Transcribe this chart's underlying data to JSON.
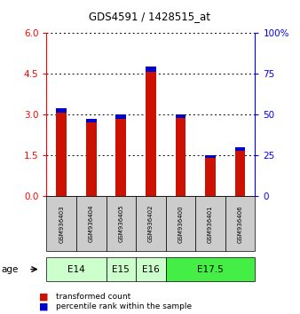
{
  "title": "GDS4591 / 1428515_at",
  "samples": [
    "GSM936403",
    "GSM936404",
    "GSM936405",
    "GSM936402",
    "GSM936400",
    "GSM936401",
    "GSM936406"
  ],
  "transformed_counts": [
    3.25,
    2.85,
    3.02,
    4.78,
    3.02,
    1.52,
    1.8
  ],
  "percentile_ranks_scaled": [
    0.18,
    0.14,
    0.16,
    0.2,
    0.15,
    0.12,
    0.14
  ],
  "age_groups": [
    {
      "label": "E14",
      "start": 0,
      "end": 2,
      "color": "#ccffcc"
    },
    {
      "label": "E15",
      "start": 2,
      "end": 3,
      "color": "#ccffcc"
    },
    {
      "label": "E16",
      "start": 3,
      "end": 4,
      "color": "#ccffcc"
    },
    {
      "label": "E17.5",
      "start": 4,
      "end": 7,
      "color": "#44ee44"
    }
  ],
  "ylim_left": [
    0,
    6
  ],
  "ylim_right": [
    0,
    100
  ],
  "yticks_left": [
    0,
    1.5,
    3.0,
    4.5,
    6
  ],
  "yticks_right": [
    0,
    25,
    50,
    75,
    100
  ],
  "bar_color_red": "#cc1100",
  "bar_color_blue": "#0000cc",
  "bg_plot": "#ffffff",
  "bg_sample_box": "#cccccc",
  "bar_width": 0.35
}
